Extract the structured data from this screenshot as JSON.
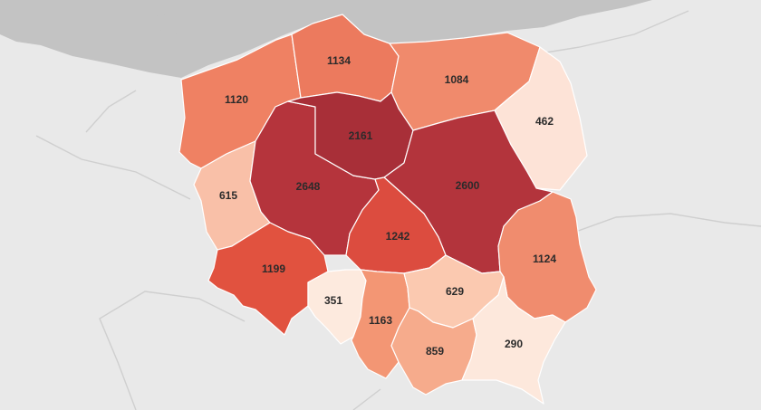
{
  "map": {
    "colors": {
      "background": "#e9e9e9",
      "sea": "#c3c3c3",
      "neighbor_border": "#cfcfcf",
      "region_border": "#ffffff"
    },
    "regions": [
      {
        "id": "zachodniopomorskie",
        "value": "1120",
        "color": "#ef8163"
      },
      {
        "id": "pomorskie",
        "value": "1134",
        "color": "#ec7a5e"
      },
      {
        "id": "warminsko-mazurskie",
        "value": "1084",
        "color": "#f08a6c"
      },
      {
        "id": "podlaskie",
        "value": "462",
        "color": "#fde3d7"
      },
      {
        "id": "lubuskie",
        "value": "615",
        "color": "#f9c0a8"
      },
      {
        "id": "wielkopolskie",
        "value": "2648",
        "color": "#b5343c"
      },
      {
        "id": "kujawsko-pomorskie",
        "value": "2161",
        "color": "#a82f38"
      },
      {
        "id": "mazowieckie",
        "value": "2600",
        "color": "#b3343c"
      },
      {
        "id": "lodzkie",
        "value": "1242",
        "color": "#dc4c3f"
      },
      {
        "id": "dolnoslaskie",
        "value": "1199",
        "color": "#e1523f"
      },
      {
        "id": "lubelskie",
        "value": "1124",
        "color": "#f08c6e"
      },
      {
        "id": "opolskie",
        "value": "351",
        "color": "#fdeade"
      },
      {
        "id": "slaskie",
        "value": "1163",
        "color": "#f39674"
      },
      {
        "id": "swietokrzyskie",
        "value": "629",
        "color": "#fbc9b0"
      },
      {
        "id": "malopolskie",
        "value": "859",
        "color": "#f6ab8c"
      },
      {
        "id": "podkarpackie",
        "value": "290",
        "color": "#fde8dc"
      }
    ]
  }
}
